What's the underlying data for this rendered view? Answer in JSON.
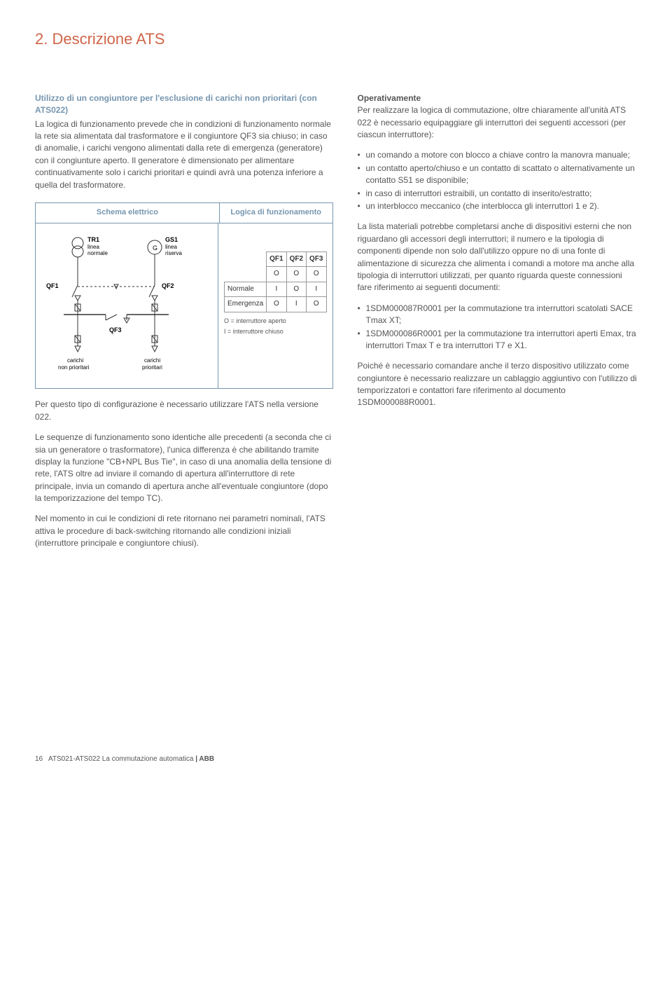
{
  "title": "2. Descrizione ATS",
  "left": {
    "intro_bold": "Utilizzo di un congiuntore per l'esclusione di carichi non prioritari (con ATS022)",
    "intro_text": "La logica di funzionamento prevede che in condizioni di funzionamento normale la rete sia alimentata dal trasformatore e il congiuntore QF3 sia chiuso; in caso di anomalie, i carichi vengono alimentati dalla rete di emergenza (generatore) con il congiunture aperto. Il generatore è dimensionato per alimentare continuativamente solo i carichi prioritari e quindi avrà una potenza inferiore a quella del trasformatore.",
    "schema_header_left": "Schema elettrico",
    "schema_header_right": "Logica di funzionamento",
    "diagram": {
      "tr1": "TR1",
      "tr1_sub1": "linea",
      "tr1_sub2": "normale",
      "gs1": "GS1",
      "gs1_sub1": "linea",
      "gs1_sub2": "riserva",
      "g": "G",
      "qf1": "QF1",
      "qf2": "QF2",
      "qf3": "QF3",
      "load1a": "carichi",
      "load1b": "non prioritari",
      "load2a": "carichi",
      "load2b": "prioritari"
    },
    "logic": {
      "h1": "QF1",
      "h2": "QF2",
      "h3": "QF3",
      "r0c1": "O",
      "r0c2": "O",
      "r0c3": "O",
      "r1_label": "Normale",
      "r1c1": "I",
      "r1c2": "O",
      "r1c3": "I",
      "r2_label": "Emergenza",
      "r2c1": "O",
      "r2c2": "I",
      "r2c3": "O",
      "legend_o": "O = interruttore aperto",
      "legend_i": "I  = interruttore chiuso"
    },
    "para2": "Per questo tipo di configurazione è necessario utilizzare l'ATS nella versione 022.",
    "para3": "Le sequenze di funzionamento sono identiche alle precedenti (a seconda che ci sia un generatore o trasformatore), l'unica differenza è che abilitando tramite display la funzione \"CB+NPL Bus Tie\", in caso di una anomalia della tensione di rete, l'ATS oltre ad inviare il comando di apertura all'interruttore di rete principale, invia un comando di apertura anche all'eventuale congiuntore (dopo la temporizzazione del tempo TC).",
    "para4": "Nel momento in cui le condizioni di rete ritornano nei parametri nominali, l'ATS attiva le procedure di back-switching ritornando alle condizioni iniziali (interruttore principale e congiuntore chiusi)."
  },
  "right": {
    "op_head": "Operativamente",
    "op_text": "Per realizzare la logica di commutazione, oltre chiaramente all'unità ATS 022 è necessario equipaggiare gli interruttori dei seguenti accessori (per ciascun interruttore):",
    "op_bullets": [
      "un comando a motore con blocco a chiave contro la manovra manuale;",
      "un contatto aperto/chiuso e un contatto di scattato o alternativamente un contatto S51 se disponibile;",
      "in caso di interruttori estraibili, un contatto di inserito/estratto;",
      "un interblocco meccanico (che interblocca gli interruttori 1 e 2)."
    ],
    "list_text": "La lista materiali potrebbe completarsi anche di dispositivi esterni che non riguardano gli accessori degli interruttori; il numero e la tipologia di componenti dipende non solo dall'utilizzo oppure no di una fonte di alimentazione di sicurezza che alimenta i comandi a motore ma anche alla tipologia di interruttori utilizzati, per quanto riguarda queste connessioni fare riferimento ai seguenti documenti:",
    "list_bullets": [
      "1SDM000087R0001 per la commutazione tra interruttori scatolati SACE Tmax XT;",
      "1SDM000086R0001 per la commutazione tra interruttori aperti Emax, tra interruttori Tmax T e tra interruttori T7 e X1."
    ],
    "final": "Poiché è necessario comandare anche il terzo dispositivo utilizzato come congiuntore è necessario realizzare un cablaggio aggiuntivo con l'utilizzo di temporizzatori e contattori fare riferimento al documento 1SDM000088R0001."
  },
  "footer": {
    "pagenum": "16",
    "doc": "ATS021-ATS022 La commutazione automatica",
    "brand": " | ABB"
  }
}
